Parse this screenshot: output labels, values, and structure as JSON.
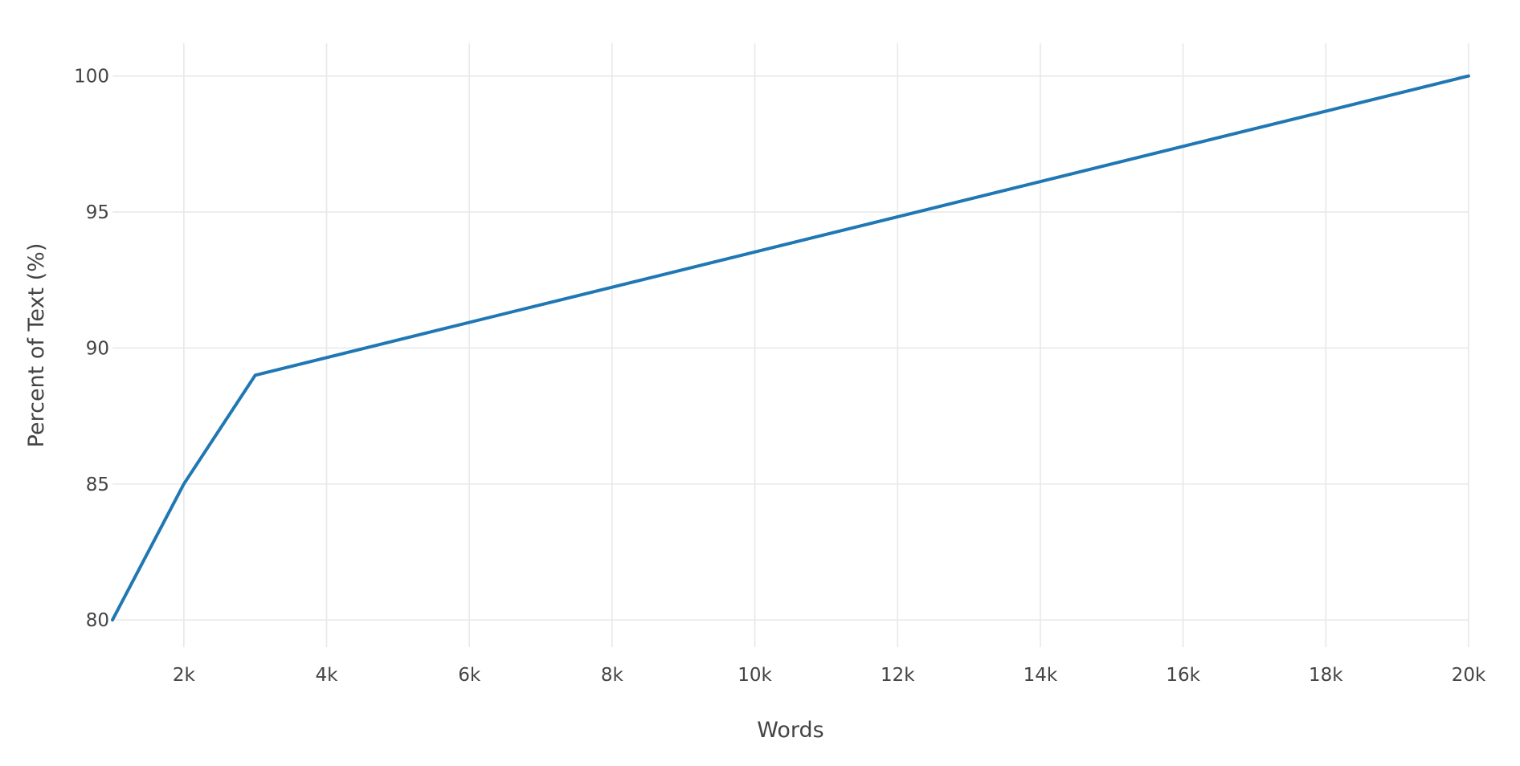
{
  "chart_data": {
    "type": "line",
    "title": "",
    "xlabel": "Words",
    "ylabel": "Percent of Text (%)",
    "xlim": [
      1000,
      20000
    ],
    "ylim": [
      79,
      101.2
    ],
    "x_ticks": [
      2000,
      4000,
      6000,
      8000,
      10000,
      12000,
      14000,
      16000,
      18000,
      20000
    ],
    "x_tick_labels": [
      "2k",
      "4k",
      "6k",
      "8k",
      "10k",
      "12k",
      "14k",
      "16k",
      "18k",
      "20k"
    ],
    "y_ticks": [
      80,
      85,
      90,
      95,
      100
    ],
    "y_tick_labels": [
      "80",
      "85",
      "90",
      "95",
      "100"
    ],
    "grid": true,
    "legend": "none",
    "series": [
      {
        "color": "#1f77b4",
        "x": [
          1000,
          2000,
          3000,
          20000
        ],
        "y": [
          80,
          85,
          89,
          100
        ]
      }
    ]
  }
}
